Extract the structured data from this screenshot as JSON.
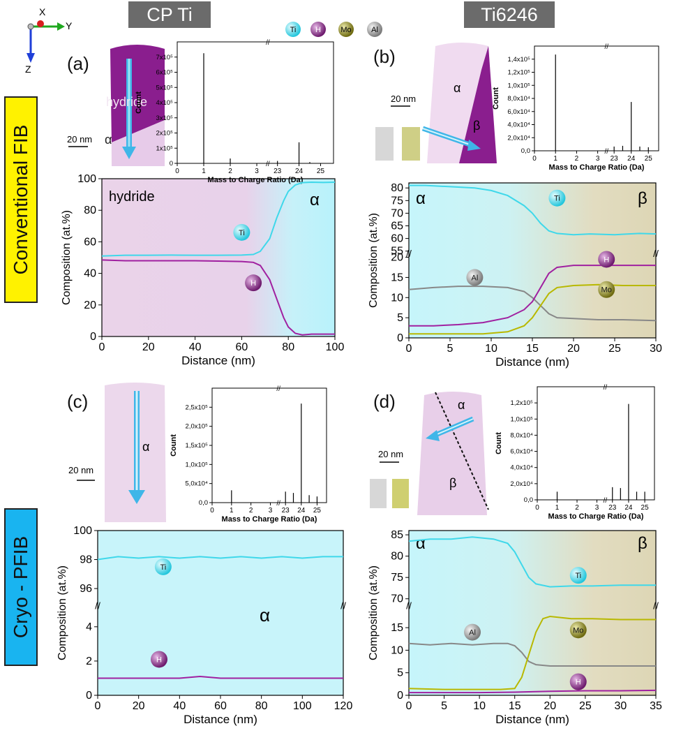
{
  "headers": {
    "left": "CP Ti",
    "right": "Ti6246"
  },
  "row_labels": {
    "top": "Conventional FIB",
    "bottom": "Cryo - PFIB"
  },
  "axes_indicator": {
    "x": "X",
    "y": "Y",
    "z": "Z"
  },
  "element_legend": [
    {
      "label": "Ti",
      "color": "#3fd8ea"
    },
    {
      "label": "H",
      "color": "#8e2a8e"
    },
    {
      "label": "Mo",
      "color": "#8f8a1e"
    },
    {
      "label": "Al",
      "color": "#9a9a9a"
    }
  ],
  "panels": {
    "a": {
      "letter": "(a)",
      "scale": "20 nm",
      "phase_labels": [
        "hydride",
        "α"
      ]
    },
    "b": {
      "letter": "(b)",
      "scale": "20 nm",
      "phase_labels": [
        "α",
        "β"
      ]
    },
    "c": {
      "letter": "(c)",
      "scale": "20 nm",
      "phase_labels": [
        "α"
      ]
    },
    "d": {
      "letter": "(d)",
      "scale": "20 nm",
      "phase_labels": [
        "α",
        "β"
      ]
    }
  },
  "colors": {
    "ti": "#3fd8ea",
    "h": "#a020a0",
    "mo": "#b8b800",
    "al": "#888888",
    "hydride_bg": "#e8cfe6",
    "alpha_bg": "#c8f4fa",
    "beta_bg": "#e4dcc0"
  },
  "chart_data": [
    {
      "id": "a-mass",
      "type": "line",
      "xlabel": "Mass to Charge Ratio (Da)",
      "ylabel": "Count",
      "x_ticks": [
        "0",
        "1",
        "2",
        "3",
        "23",
        "24",
        "25"
      ],
      "y_ticks": [
        "0",
        "1x10⁵",
        "2x10⁵",
        "3x10⁵",
        "4x10⁵",
        "5x10⁵",
        "6x10⁵",
        "7x10⁵"
      ],
      "ylim": [
        0,
        750000
      ],
      "peaks": [
        {
          "x": 1,
          "y": 680000
        },
        {
          "x": 2,
          "y": 30000
        },
        {
          "x": 23,
          "y": 15000
        },
        {
          "x": 24,
          "y": 130000
        },
        {
          "x": 24.5,
          "y": 8000
        }
      ]
    },
    {
      "id": "b-mass",
      "type": "line",
      "xlabel": "Mass to Charge Ratio (Da)",
      "ylabel": "Count",
      "x_ticks": [
        "0",
        "1",
        "2",
        "3",
        "23",
        "24",
        "25"
      ],
      "y_ticks": [
        "0,0",
        "2,0x10⁴",
        "4,0x10⁴",
        "6,0x10⁴",
        "8,0x10⁴",
        "1,0x10⁵",
        "1,2x10⁵",
        "1,4x10⁵"
      ],
      "ylim": [
        0,
        148000
      ],
      "peaks": [
        {
          "x": 1,
          "y": 136000
        },
        {
          "x": 23,
          "y": 6000
        },
        {
          "x": 23.5,
          "y": 7000
        },
        {
          "x": 24,
          "y": 69000
        },
        {
          "x": 24.5,
          "y": 6000
        },
        {
          "x": 25,
          "y": 5000
        }
      ]
    },
    {
      "id": "c-mass",
      "type": "line",
      "xlabel": "Mass to Charge Ratio (Da)",
      "ylabel": "Count",
      "x_ticks": [
        "0",
        "1",
        "2",
        "3",
        "23",
        "24",
        "25"
      ],
      "y_ticks": [
        "0,0",
        "5,0x10⁴",
        "1,0x10⁵",
        "1,5x10⁵",
        "2,0x10⁵",
        "2,5x10⁵"
      ],
      "ylim": [
        0,
        260000
      ],
      "peaks": [
        {
          "x": 1,
          "y": 28000
        },
        {
          "x": 23,
          "y": 25000
        },
        {
          "x": 23.5,
          "y": 22000
        },
        {
          "x": 24,
          "y": 225000
        },
        {
          "x": 24.5,
          "y": 17000
        },
        {
          "x": 25,
          "y": 14000
        }
      ]
    },
    {
      "id": "d-mass",
      "type": "line",
      "xlabel": "Mass to Charge Ratio (Da)",
      "ylabel": "Count",
      "x_ticks": [
        "0",
        "1",
        "2",
        "3",
        "23",
        "24",
        "25"
      ],
      "y_ticks": [
        "0,0",
        "2,0x10⁴",
        "4,0x10⁴",
        "6,0x10⁴",
        "8,0x10⁴",
        "1,0x10⁵",
        "1,2x10⁵"
      ],
      "ylim": [
        0,
        125000
      ],
      "peaks": [
        {
          "x": 1,
          "y": 9000
        },
        {
          "x": 23,
          "y": 14000
        },
        {
          "x": 23.5,
          "y": 13000
        },
        {
          "x": 24,
          "y": 106000
        },
        {
          "x": 24.5,
          "y": 9000
        },
        {
          "x": 25,
          "y": 9000
        }
      ]
    },
    {
      "id": "a-profile",
      "type": "line",
      "xlabel": "Distance (nm)",
      "ylabel": "Composition (at.%)",
      "xlim": [
        0,
        100
      ],
      "ylim": [
        0,
        100
      ],
      "x_ticks": [
        0,
        20,
        40,
        60,
        80,
        100
      ],
      "y_ticks": [
        0,
        20,
        40,
        60,
        80,
        100
      ],
      "series": [
        {
          "name": "Ti",
          "points": [
            [
              0,
              51
            ],
            [
              10,
              51.5
            ],
            [
              20,
              51.5
            ],
            [
              30,
              51.6
            ],
            [
              40,
              51.5
            ],
            [
              50,
              51.5
            ],
            [
              60,
              51.6
            ],
            [
              65,
              52
            ],
            [
              68,
              54
            ],
            [
              72,
              62
            ],
            [
              75,
              75
            ],
            [
              78,
              86
            ],
            [
              80,
              92
            ],
            [
              83,
              96
            ],
            [
              86,
              97.5
            ],
            [
              90,
              97.8
            ],
            [
              95,
              97.6
            ],
            [
              100,
              97.8
            ]
          ]
        },
        {
          "name": "H",
          "points": [
            [
              0,
              48.5
            ],
            [
              10,
              48
            ],
            [
              20,
              48
            ],
            [
              30,
              48
            ],
            [
              40,
              48
            ],
            [
              50,
              47.8
            ],
            [
              60,
              47.5
            ],
            [
              65,
              47
            ],
            [
              68,
              45
            ],
            [
              72,
              36
            ],
            [
              75,
              24
            ],
            [
              78,
              12
            ],
            [
              80,
              6
            ],
            [
              83,
              2
            ],
            [
              86,
              1
            ],
            [
              90,
              1.5
            ],
            [
              95,
              1.5
            ],
            [
              100,
              1.5
            ]
          ]
        }
      ],
      "labels": [
        "Ti",
        "H"
      ]
    },
    {
      "id": "b-profile",
      "type": "line",
      "xlabel": "Distance (nm)",
      "ylabel": "Composition (at.%)",
      "xlim": [
        0,
        30
      ],
      "x_ticks": [
        0,
        5,
        10,
        15,
        20,
        25,
        30
      ],
      "y_ticks": [
        "0",
        "5",
        "10",
        "15",
        "20",
        "55",
        "60",
        "65",
        "70",
        "75",
        "80"
      ],
      "broken_axis": {
        "lower": [
          0,
          20
        ],
        "upper": [
          55,
          82
        ]
      },
      "series": [
        {
          "name": "Ti",
          "points": [
            [
              0,
              81
            ],
            [
              2,
              81
            ],
            [
              5,
              80.5
            ],
            [
              8,
              80
            ],
            [
              10,
              79
            ],
            [
              12,
              77
            ],
            [
              14,
              73
            ],
            [
              15,
              70
            ],
            [
              16,
              66
            ],
            [
              17,
              63
            ],
            [
              18,
              62
            ],
            [
              20,
              61.5
            ],
            [
              22,
              61.8
            ],
            [
              25,
              61.5
            ],
            [
              28,
              62
            ],
            [
              30,
              61.8
            ]
          ]
        },
        {
          "name": "Al",
          "points": [
            [
              0,
              12
            ],
            [
              3,
              12.5
            ],
            [
              6,
              12.8
            ],
            [
              9,
              12.8
            ],
            [
              12,
              12.5
            ],
            [
              14,
              11.5
            ],
            [
              15,
              10
            ],
            [
              16,
              8
            ],
            [
              17,
              6
            ],
            [
              18,
              5
            ],
            [
              20,
              4.8
            ],
            [
              23,
              4.5
            ],
            [
              26,
              4.5
            ],
            [
              30,
              4.3
            ]
          ]
        },
        {
          "name": "H",
          "points": [
            [
              0,
              3
            ],
            [
              3,
              3
            ],
            [
              6,
              3.3
            ],
            [
              9,
              3.8
            ],
            [
              12,
              5
            ],
            [
              14,
              7
            ],
            [
              15,
              9
            ],
            [
              16,
              12.5
            ],
            [
              17,
              16
            ],
            [
              18,
              17.5
            ],
            [
              20,
              18
            ],
            [
              23,
              18
            ],
            [
              26,
              18
            ],
            [
              30,
              18
            ]
          ]
        },
        {
          "name": "Mo",
          "points": [
            [
              0,
              1
            ],
            [
              3,
              1
            ],
            [
              6,
              1
            ],
            [
              9,
              1
            ],
            [
              12,
              1.5
            ],
            [
              14,
              3
            ],
            [
              15,
              5
            ],
            [
              16,
              8
            ],
            [
              17,
              11
            ],
            [
              18,
              12.5
            ],
            [
              20,
              13
            ],
            [
              23,
              13.2
            ],
            [
              26,
              13
            ],
            [
              30,
              13
            ]
          ]
        }
      ],
      "labels": [
        "Ti",
        "Al",
        "H",
        "Mo"
      ]
    },
    {
      "id": "c-profile",
      "type": "line",
      "xlabel": "Distance (nm)",
      "ylabel": "Composition (at.%)",
      "xlim": [
        0,
        120
      ],
      "x_ticks": [
        0,
        20,
        40,
        60,
        80,
        100,
        120
      ],
      "y_ticks": [
        "0",
        "2",
        "4",
        "96",
        "98",
        "100"
      ],
      "broken_axis": {
        "lower": [
          0,
          5
        ],
        "upper": [
          95,
          100
        ]
      },
      "series": [
        {
          "name": "Ti",
          "points": [
            [
              0,
              98
            ],
            [
              10,
              98.2
            ],
            [
              20,
              98.1
            ],
            [
              30,
              98.2
            ],
            [
              40,
              98.1
            ],
            [
              50,
              98.2
            ],
            [
              60,
              98.1
            ],
            [
              70,
              98.2
            ],
            [
              80,
              98.1
            ],
            [
              90,
              98.2
            ],
            [
              100,
              98.1
            ],
            [
              110,
              98.2
            ],
            [
              120,
              98.2
            ]
          ]
        },
        {
          "name": "H",
          "points": [
            [
              0,
              1
            ],
            [
              10,
              1
            ],
            [
              20,
              1
            ],
            [
              30,
              1
            ],
            [
              40,
              1
            ],
            [
              50,
              1.1
            ],
            [
              60,
              1
            ],
            [
              70,
              1
            ],
            [
              80,
              1
            ],
            [
              90,
              1
            ],
            [
              100,
              1
            ],
            [
              110,
              1
            ],
            [
              120,
              1
            ]
          ]
        }
      ],
      "labels": [
        "Ti",
        "H"
      ]
    },
    {
      "id": "d-profile",
      "type": "line",
      "xlabel": "Distance (nm)",
      "ylabel": "Composition (at.%)",
      "xlim": [
        0,
        35
      ],
      "x_ticks": [
        0,
        5,
        10,
        15,
        20,
        25,
        30,
        35
      ],
      "y_ticks": [
        "0",
        "5",
        "10",
        "15",
        "70",
        "75",
        "80",
        "85"
      ],
      "broken_axis": {
        "lower": [
          0,
          19
        ],
        "upper": [
          69,
          86
        ]
      },
      "series": [
        {
          "name": "Ti",
          "points": [
            [
              0,
              83.5
            ],
            [
              3,
              84
            ],
            [
              6,
              84
            ],
            [
              9,
              84.5
            ],
            [
              12,
              84
            ],
            [
              14,
              83
            ],
            [
              15,
              81
            ],
            [
              16,
              78
            ],
            [
              17,
              75
            ],
            [
              18,
              73.5
            ],
            [
              20,
              72.8
            ],
            [
              23,
              73
            ],
            [
              26,
              73
            ],
            [
              30,
              73.2
            ],
            [
              35,
              73.2
            ]
          ]
        },
        {
          "name": "Al",
          "points": [
            [
              0,
              11.5
            ],
            [
              3,
              11.2
            ],
            [
              6,
              11.5
            ],
            [
              9,
              11.2
            ],
            [
              12,
              11.5
            ],
            [
              14,
              11.5
            ],
            [
              15,
              11
            ],
            [
              16,
              9.5
            ],
            [
              17,
              7.5
            ],
            [
              18,
              6.8
            ],
            [
              20,
              6.5
            ],
            [
              25,
              6.5
            ],
            [
              30,
              6.5
            ],
            [
              35,
              6.5
            ]
          ]
        },
        {
          "name": "Mo",
          "points": [
            [
              0,
              1.5
            ],
            [
              5,
              1.3
            ],
            [
              10,
              1.3
            ],
            [
              13,
              1.3
            ],
            [
              15,
              1.5
            ],
            [
              16,
              4
            ],
            [
              17,
              9
            ],
            [
              18,
              14
            ],
            [
              19,
              17
            ],
            [
              20,
              17.5
            ],
            [
              23,
              17
            ],
            [
              26,
              17
            ],
            [
              30,
              16.8
            ],
            [
              35,
              16.8
            ]
          ]
        },
        {
          "name": "H",
          "points": [
            [
              0,
              0.6
            ],
            [
              5,
              0.6
            ],
            [
              10,
              0.6
            ],
            [
              15,
              0.7
            ],
            [
              20,
              0.9
            ],
            [
              25,
              1
            ],
            [
              30,
              1
            ],
            [
              35,
              1.1
            ]
          ]
        }
      ],
      "labels": [
        "Ti",
        "Al",
        "Mo",
        "H"
      ]
    }
  ]
}
